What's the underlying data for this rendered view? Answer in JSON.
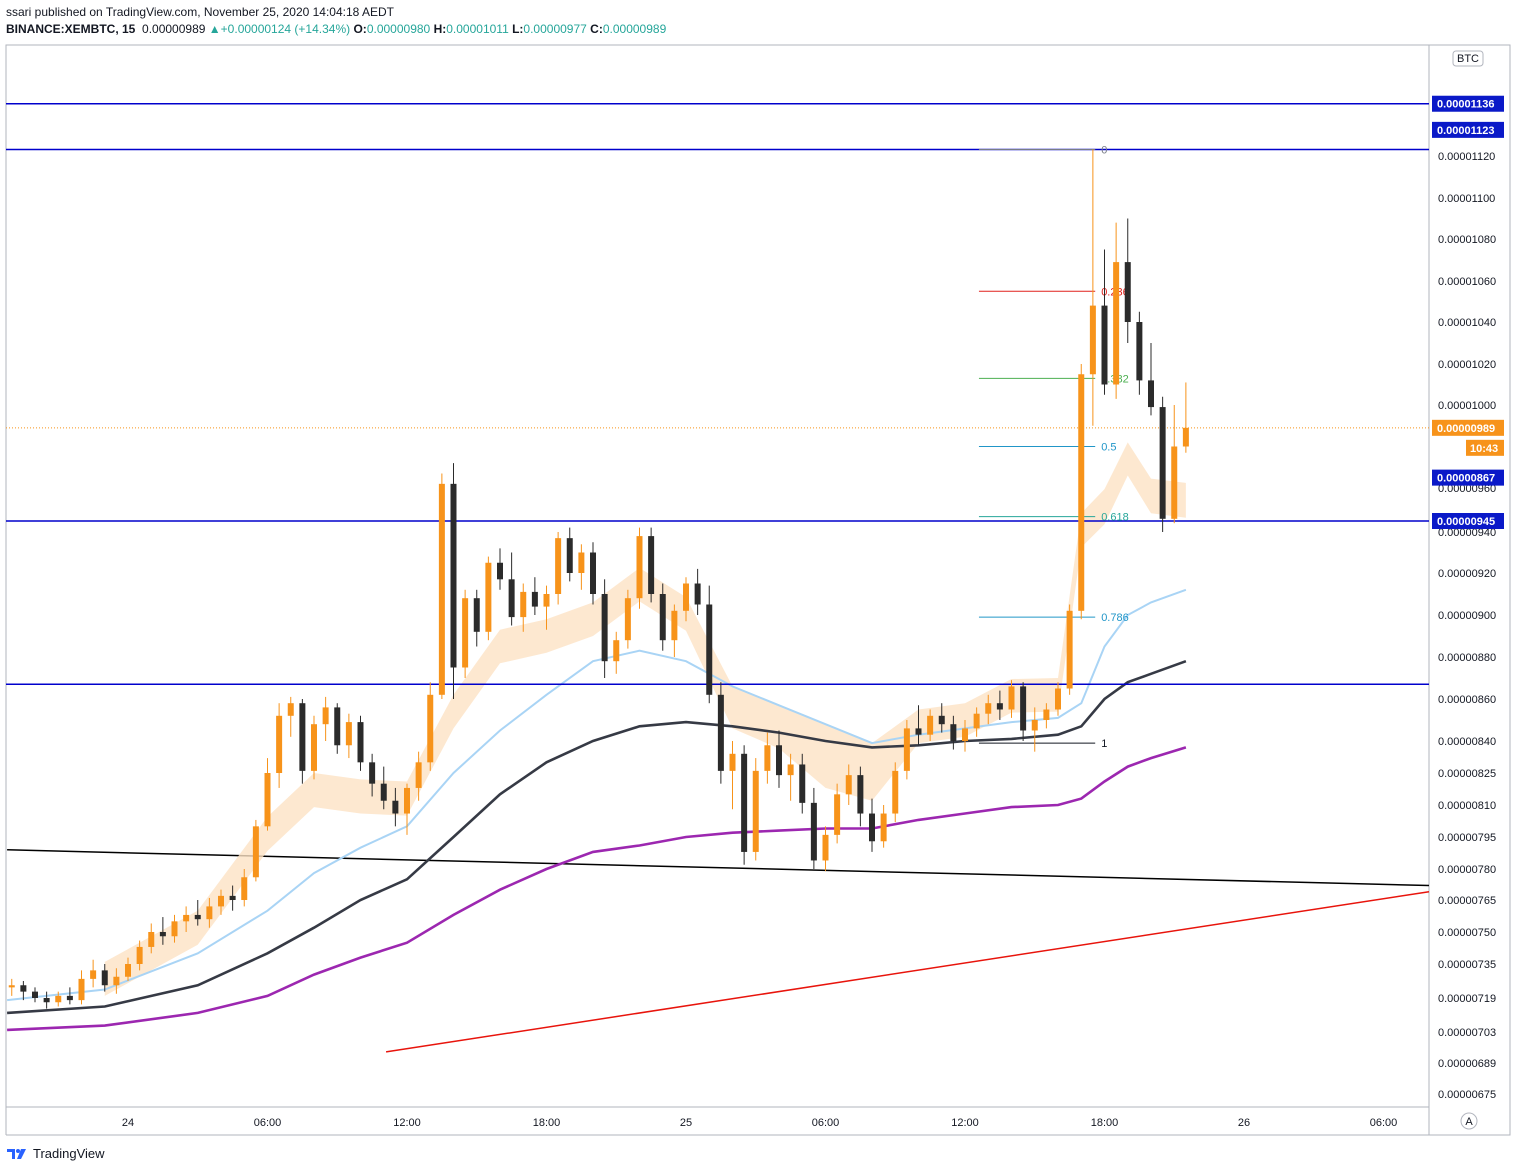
{
  "header": {
    "publisher": "ssari published on TradingView.com, November 25, 2020 14:04:18 AEDT",
    "symbol": "BINANCE:XEMBTC, 15",
    "last": "0.00000989",
    "arrow": "▲",
    "change": "+0.00000124 (+14.34%)",
    "o_label": "O:",
    "o_value": "0.00000980",
    "h_label": "H:",
    "h_value": "0.00001011",
    "l_label": "L:",
    "l_value": "0.00000977",
    "c_label": "C:",
    "c_value": "0.00000989"
  },
  "footer": {
    "brand": "TradingView"
  },
  "colors": {
    "up": "#f7931a",
    "down": "#2b2b2b",
    "hline": "#0000cc",
    "ema_light": "#a9d4f5",
    "ema_dark": "#363a45",
    "ema_purple": "#9c27b0",
    "band": "#fde2c4",
    "trend_black": "#000000",
    "trend_red": "#e8140c",
    "tag_blue": "#0a19c8",
    "tag_orange": "#f7931a"
  },
  "chart_data": {
    "type": "candlestick",
    "symbol": "XEMBTC",
    "interval": "15",
    "currency_label": "BTC",
    "scale_mode_label": "A",
    "countdown": "10:43",
    "ylim": [
      6.65e-06,
      1.15e-05
    ],
    "y_ticks": [
      "0.00001120",
      "0.00001100",
      "0.00001080",
      "0.00001060",
      "0.00001040",
      "0.00001020",
      "0.00001000",
      "0.00000960",
      "0.00000940",
      "0.00000920",
      "0.00000900",
      "0.00000880",
      "0.00000860",
      "0.00000840",
      "0.00000825",
      "0.00000810",
      "0.00000795",
      "0.00000780",
      "0.00000765",
      "0.00000750",
      "0.00000735",
      "0.00000719",
      "0.00000703",
      "0.00000689",
      "0.00000675"
    ],
    "x_ticks": [
      {
        "label": "24",
        "hour": 0
      },
      {
        "label": "06:00",
        "hour": 6
      },
      {
        "label": "12:00",
        "hour": 12
      },
      {
        "label": "18:00",
        "hour": 18
      },
      {
        "label": "25",
        "hour": 24
      },
      {
        "label": "06:00",
        "hour": 30
      },
      {
        "label": "12:00",
        "hour": 36
      },
      {
        "label": "18:00",
        "hour": 42
      },
      {
        "label": "26",
        "hour": 48
      },
      {
        "label": "06:00",
        "hour": 54
      }
    ],
    "x_range_hours": [
      -5.2,
      56.0
    ],
    "horizontal_levels": [
      {
        "price": 1.136e-05,
        "label": "0.00001136"
      },
      {
        "price": 1.123e-05,
        "label": "0.00001123",
        "line": "0.00001122"
      },
      {
        "price": 9.45e-06,
        "label": "0.00000945"
      },
      {
        "price": 8.67e-06,
        "label": "0.00000867"
      }
    ],
    "last_price": {
      "price": 9.89e-06,
      "label": "0.00000989"
    },
    "fib_levels": [
      {
        "ratio": "0",
        "price": 1.122e-05,
        "color": "#787b86"
      },
      {
        "ratio": "0.236",
        "price": 1.055e-05,
        "color": "#e0211b"
      },
      {
        "ratio": "0.382",
        "price": 1.013e-05,
        "color": "#4caf50"
      },
      {
        "ratio": "0.5",
        "price": 9.8e-06,
        "color": "#2196c8"
      },
      {
        "ratio": "0.618",
        "price": 9.47e-06,
        "color": "#26a69a"
      },
      {
        "ratio": "0.786",
        "price": 8.99e-06,
        "color": "#2196c8"
      },
      {
        "ratio": "1",
        "price": 8.39e-06,
        "color": "#131722"
      }
    ],
    "fib_x_hours": [
      36.6,
      41.6
    ],
    "trendlines": [
      {
        "name": "black-trendline",
        "from": [
          -5.2,
          7.89e-06
        ],
        "to": [
          56.0,
          7.72e-06
        ]
      },
      {
        "name": "red-trendline",
        "from": [
          11.1,
          6.94e-06
        ],
        "to": [
          56.0,
          7.69e-06
        ]
      }
    ],
    "candles": [
      [
        -5.0,
        7.24e-06,
        7.28e-06,
        7.2e-06,
        7.25e-06
      ],
      [
        -4.5,
        7.25e-06,
        7.27e-06,
        7.18e-06,
        7.22e-06
      ],
      [
        -4.0,
        7.22e-06,
        7.24e-06,
        7.17e-06,
        7.19e-06
      ],
      [
        -3.5,
        7.19e-06,
        7.22e-06,
        7.14e-06,
        7.17e-06
      ],
      [
        -3.0,
        7.17e-06,
        7.22e-06,
        7.15e-06,
        7.2e-06
      ],
      [
        -2.5,
        7.2e-06,
        7.24e-06,
        7.16e-06,
        7.18e-06
      ],
      [
        -2.0,
        7.18e-06,
        7.32e-06,
        7.16e-06,
        7.28e-06
      ],
      [
        -1.5,
        7.28e-06,
        7.37e-06,
        7.24e-06,
        7.32e-06
      ],
      [
        -1.0,
        7.32e-06,
        7.35e-06,
        7.22e-06,
        7.25e-06
      ],
      [
        -0.5,
        7.25e-06,
        7.33e-06,
        7.21e-06,
        7.29e-06
      ],
      [
        0.0,
        7.29e-06,
        7.38e-06,
        7.27e-06,
        7.35e-06
      ],
      [
        0.5,
        7.35e-06,
        7.46e-06,
        7.32e-06,
        7.43e-06
      ],
      [
        1.0,
        7.43e-06,
        7.54e-06,
        7.4e-06,
        7.5e-06
      ],
      [
        1.5,
        7.5e-06,
        7.57e-06,
        7.44e-06,
        7.48e-06
      ],
      [
        2.0,
        7.48e-06,
        7.58e-06,
        7.45e-06,
        7.55e-06
      ],
      [
        2.5,
        7.55e-06,
        7.62e-06,
        7.5e-06,
        7.58e-06
      ],
      [
        3.0,
        7.58e-06,
        7.65e-06,
        7.53e-06,
        7.56e-06
      ],
      [
        3.5,
        7.56e-06,
        7.66e-06,
        7.52e-06,
        7.62e-06
      ],
      [
        4.0,
        7.62e-06,
        7.7e-06,
        7.58e-06,
        7.67e-06
      ],
      [
        4.5,
        7.67e-06,
        7.72e-06,
        7.6e-06,
        7.65e-06
      ],
      [
        5.0,
        7.65e-06,
        7.8e-06,
        7.62e-06,
        7.76e-06
      ],
      [
        5.5,
        7.76e-06,
        8.03e-06,
        7.74e-06,
        8e-06
      ],
      [
        6.0,
        8e-06,
        8.32e-06,
        7.98e-06,
        8.25e-06
      ],
      [
        6.5,
        8.25e-06,
        8.58e-06,
        8.18e-06,
        8.52e-06
      ],
      [
        7.0,
        8.52e-06,
        8.61e-06,
        8.42e-06,
        8.58e-06
      ],
      [
        7.5,
        8.58e-06,
        8.6e-06,
        8.2e-06,
        8.26e-06
      ],
      [
        8.0,
        8.26e-06,
        8.52e-06,
        8.22e-06,
        8.48e-06
      ],
      [
        8.5,
        8.48e-06,
        8.61e-06,
        8.4e-06,
        8.56e-06
      ],
      [
        9.0,
        8.56e-06,
        8.58e-06,
        8.34e-06,
        8.38e-06
      ],
      [
        9.5,
        8.38e-06,
        8.53e-06,
        8.32e-06,
        8.49e-06
      ],
      [
        10.0,
        8.49e-06,
        8.52e-06,
        8.26e-06,
        8.3e-06
      ],
      [
        10.5,
        8.3e-06,
        8.34e-06,
        8.14e-06,
        8.2e-06
      ],
      [
        11.0,
        8.2e-06,
        8.28e-06,
        8.08e-06,
        8.12e-06
      ],
      [
        11.5,
        8.12e-06,
        8.18e-06,
        8e-06,
        8.06e-06
      ],
      [
        12.0,
        8.06e-06,
        8.2e-06,
        7.96e-06,
        8.18e-06
      ],
      [
        12.5,
        8.18e-06,
        8.35e-06,
        8.12e-06,
        8.3e-06
      ],
      [
        13.0,
        8.3e-06,
        8.68e-06,
        8.26e-06,
        8.62e-06
      ],
      [
        13.5,
        8.62e-06,
        9.67e-06,
        8.6e-06,
        9.62e-06
      ],
      [
        14.0,
        9.62e-06,
        9.72e-06,
        8.6e-06,
        8.75e-06
      ],
      [
        14.5,
        8.75e-06,
        9.12e-06,
        8.7e-06,
        9.08e-06
      ],
      [
        15.0,
        9.08e-06,
        9.12e-06,
        8.85e-06,
        8.92e-06
      ],
      [
        15.5,
        8.92e-06,
        9.28e-06,
        8.88e-06,
        9.25e-06
      ],
      [
        16.0,
        9.25e-06,
        9.32e-06,
        9.12e-06,
        9.17e-06
      ],
      [
        16.5,
        9.17e-06,
        9.3e-06,
        8.95e-06,
        8.99e-06
      ],
      [
        17.0,
        8.99e-06,
        9.15e-06,
        8.92e-06,
        9.11e-06
      ],
      [
        17.5,
        9.11e-06,
        9.18e-06,
        9e-06,
        9.04e-06
      ],
      [
        18.0,
        9.04e-06,
        9.14e-06,
        8.93e-06,
        9.1e-06
      ],
      [
        18.5,
        9.1e-06,
        9.4e-06,
        9.05e-06,
        9.37e-06
      ],
      [
        19.0,
        9.37e-06,
        9.42e-06,
        9.16e-06,
        9.2e-06
      ],
      [
        19.5,
        9.2e-06,
        9.34e-06,
        9.12e-06,
        9.3e-06
      ],
      [
        20.0,
        9.3e-06,
        9.35e-06,
        9.05e-06,
        9.1e-06
      ],
      [
        20.5,
        9.1e-06,
        9.17e-06,
        8.7e-06,
        8.78e-06
      ],
      [
        21.0,
        8.78e-06,
        8.92e-06,
        8.72e-06,
        8.88e-06
      ],
      [
        21.5,
        8.88e-06,
        9.12e-06,
        8.84e-06,
        9.08e-06
      ],
      [
        22.0,
        9.08e-06,
        9.42e-06,
        9.03e-06,
        9.38e-06
      ],
      [
        22.5,
        9.38e-06,
        9.42e-06,
        9.06e-06,
        9.1e-06
      ],
      [
        23.0,
        9.1e-06,
        9.15e-06,
        8.83e-06,
        8.88e-06
      ],
      [
        23.5,
        8.88e-06,
        9.05e-06,
        8.8e-06,
        9.02e-06
      ],
      [
        24.0,
        9.02e-06,
        9.18e-06,
        8.97e-06,
        9.15e-06
      ],
      [
        24.5,
        9.15e-06,
        9.22e-06,
        9e-06,
        9.05e-06
      ],
      [
        25.0,
        9.05e-06,
        9.14e-06,
        8.58e-06,
        8.62e-06
      ],
      [
        25.5,
        8.62e-06,
        8.68e-06,
        8.2e-06,
        8.26e-06
      ],
      [
        26.0,
        8.26e-06,
        8.4e-06,
        8.08e-06,
        8.34e-06
      ],
      [
        26.5,
        8.34e-06,
        8.38e-06,
        7.82e-06,
        7.88e-06
      ],
      [
        27.0,
        7.88e-06,
        8.32e-06,
        7.84e-06,
        8.26e-06
      ],
      [
        27.5,
        8.26e-06,
        8.44e-06,
        8.2e-06,
        8.38e-06
      ],
      [
        28.0,
        8.38e-06,
        8.45e-06,
        8.18e-06,
        8.24e-06
      ],
      [
        28.5,
        8.24e-06,
        8.34e-06,
        8.12e-06,
        8.29e-06
      ],
      [
        29.0,
        8.29e-06,
        8.34e-06,
        8.06e-06,
        8.11e-06
      ],
      [
        29.5,
        8.11e-06,
        8.18e-06,
        7.8e-06,
        7.84e-06
      ],
      [
        30.0,
        7.84e-06,
        8e-06,
        7.79e-06,
        7.96e-06
      ],
      [
        30.5,
        7.96e-06,
        8.2e-06,
        7.92e-06,
        8.15e-06
      ],
      [
        31.0,
        8.15e-06,
        8.29e-06,
        8.1e-06,
        8.24e-06
      ],
      [
        31.5,
        8.24e-06,
        8.28e-06,
        8e-06,
        8.06e-06
      ],
      [
        32.0,
        8.06e-06,
        8.13e-06,
        7.88e-06,
        7.93e-06
      ],
      [
        32.5,
        7.93e-06,
        8.1e-06,
        7.9e-06,
        8.06e-06
      ],
      [
        33.0,
        8.06e-06,
        8.3e-06,
        8.02e-06,
        8.26e-06
      ],
      [
        33.5,
        8.26e-06,
        8.5e-06,
        8.22e-06,
        8.46e-06
      ],
      [
        34.0,
        8.46e-06,
        8.57e-06,
        8.38e-06,
        8.43e-06
      ],
      [
        34.5,
        8.43e-06,
        8.55e-06,
        8.4e-06,
        8.52e-06
      ],
      [
        35.0,
        8.52e-06,
        8.58e-06,
        8.44e-06,
        8.48e-06
      ],
      [
        35.5,
        8.48e-06,
        8.52e-06,
        8.36e-06,
        8.4e-06
      ],
      [
        36.0,
        8.4e-06,
        8.5e-06,
        8.35e-06,
        8.46e-06
      ],
      [
        36.5,
        8.46e-06,
        8.56e-06,
        8.42e-06,
        8.53e-06
      ],
      [
        37.0,
        8.53e-06,
        8.62e-06,
        8.48e-06,
        8.58e-06
      ],
      [
        37.5,
        8.58e-06,
        8.64e-06,
        8.5e-06,
        8.55e-06
      ],
      [
        38.0,
        8.55e-06,
        8.69e-06,
        8.51e-06,
        8.66e-06
      ],
      [
        38.5,
        8.66e-06,
        8.68e-06,
        8.4e-06,
        8.45e-06
      ],
      [
        39.0,
        8.45e-06,
        8.56e-06,
        8.35e-06,
        8.5e-06
      ],
      [
        39.5,
        8.5e-06,
        8.58e-06,
        8.46e-06,
        8.55e-06
      ],
      [
        40.0,
        8.55e-06,
        8.68e-06,
        8.52e-06,
        8.65e-06
      ],
      [
        40.5,
        8.65e-06,
        9.05e-06,
        8.62e-06,
        9.02e-06
      ],
      [
        41.0,
        9.02e-06,
        1.02e-05,
        8.98e-06,
        1.015e-05
      ],
      [
        41.5,
        1.015e-05,
        1.122e-05,
        9.9e-06,
        1.048e-05
      ],
      [
        42.0,
        1.048e-05,
        1.075e-05,
        1.005e-05,
        1.01e-05
      ],
      [
        42.5,
        1.01e-05,
        1.088e-05,
        1.003e-05,
        1.069e-05
      ],
      [
        43.0,
        1.069e-05,
        1.09e-05,
        1.03e-05,
        1.04e-05
      ],
      [
        43.5,
        1.04e-05,
        1.045e-05,
        1.005e-05,
        1.012e-05
      ],
      [
        44.0,
        1.012e-05,
        1.03e-05,
        9.95e-06,
        9.99e-06
      ],
      [
        44.5,
        9.99e-06,
        1.004e-05,
        9.4e-06,
        9.46e-06
      ],
      [
        45.0,
        9.46e-06,
        1e-05,
        9.44e-06,
        9.8e-06
      ],
      [
        45.5,
        9.8e-06,
        1.011e-05,
        9.77e-06,
        9.89e-06
      ]
    ],
    "ma_series": [
      {
        "name": "ema-fast-light",
        "color": "#a9d4f5",
        "points": [
          [
            -5.2,
            7.18e-06
          ],
          [
            -1,
            7.23e-06
          ],
          [
            3,
            7.4e-06
          ],
          [
            6,
            7.6e-06
          ],
          [
            8,
            7.78e-06
          ],
          [
            10,
            7.9e-06
          ],
          [
            12,
            8e-06
          ],
          [
            14,
            8.25e-06
          ],
          [
            16,
            8.45e-06
          ],
          [
            18,
            8.62e-06
          ],
          [
            20,
            8.78e-06
          ],
          [
            22,
            8.83e-06
          ],
          [
            24,
            8.78e-06
          ],
          [
            26,
            8.66e-06
          ],
          [
            28,
            8.57e-06
          ],
          [
            30,
            8.48e-06
          ],
          [
            32,
            8.39e-06
          ],
          [
            34,
            8.43e-06
          ],
          [
            36,
            8.46e-06
          ],
          [
            38,
            8.49e-06
          ],
          [
            40,
            8.51e-06
          ],
          [
            41,
            8.58e-06
          ],
          [
            42,
            8.85e-06
          ],
          [
            43,
            9e-06
          ],
          [
            44,
            9.06e-06
          ],
          [
            45.5,
            9.12e-06
          ]
        ]
      },
      {
        "name": "ema-slow-dark",
        "color": "#363a45",
        "points": [
          [
            -5.2,
            7.12e-06
          ],
          [
            -1,
            7.15e-06
          ],
          [
            3,
            7.25e-06
          ],
          [
            6,
            7.4e-06
          ],
          [
            8,
            7.52e-06
          ],
          [
            10,
            7.65e-06
          ],
          [
            12,
            7.75e-06
          ],
          [
            14,
            7.95e-06
          ],
          [
            16,
            8.15e-06
          ],
          [
            18,
            8.3e-06
          ],
          [
            20,
            8.4e-06
          ],
          [
            22,
            8.47e-06
          ],
          [
            24,
            8.49e-06
          ],
          [
            26,
            8.47e-06
          ],
          [
            28,
            8.44e-06
          ],
          [
            30,
            8.4e-06
          ],
          [
            32,
            8.37e-06
          ],
          [
            34,
            8.38e-06
          ],
          [
            36,
            8.4e-06
          ],
          [
            38,
            8.41e-06
          ],
          [
            40,
            8.43e-06
          ],
          [
            41,
            8.47e-06
          ],
          [
            42,
            8.6e-06
          ],
          [
            43,
            8.68e-06
          ],
          [
            44,
            8.72e-06
          ],
          [
            45.5,
            8.78e-06
          ]
        ]
      },
      {
        "name": "ema-long-purple",
        "color": "#9c27b0",
        "points": [
          [
            -5.2,
            7.04e-06
          ],
          [
            -1,
            7.06e-06
          ],
          [
            3,
            7.12e-06
          ],
          [
            6,
            7.2e-06
          ],
          [
            8,
            7.3e-06
          ],
          [
            10,
            7.38e-06
          ],
          [
            12,
            7.45e-06
          ],
          [
            14,
            7.58e-06
          ],
          [
            16,
            7.7e-06
          ],
          [
            18,
            7.8e-06
          ],
          [
            20,
            7.88e-06
          ],
          [
            22,
            7.91e-06
          ],
          [
            24,
            7.95e-06
          ],
          [
            26,
            7.97e-06
          ],
          [
            28,
            7.98e-06
          ],
          [
            30,
            7.99e-06
          ],
          [
            32,
            7.99e-06
          ],
          [
            34,
            8.03e-06
          ],
          [
            36,
            8.06e-06
          ],
          [
            38,
            8.09e-06
          ],
          [
            40,
            8.1e-06
          ],
          [
            41,
            8.13e-06
          ],
          [
            42,
            8.21e-06
          ],
          [
            43,
            8.28e-06
          ],
          [
            44,
            8.32e-06
          ],
          [
            45.5,
            8.37e-06
          ]
        ]
      }
    ]
  }
}
